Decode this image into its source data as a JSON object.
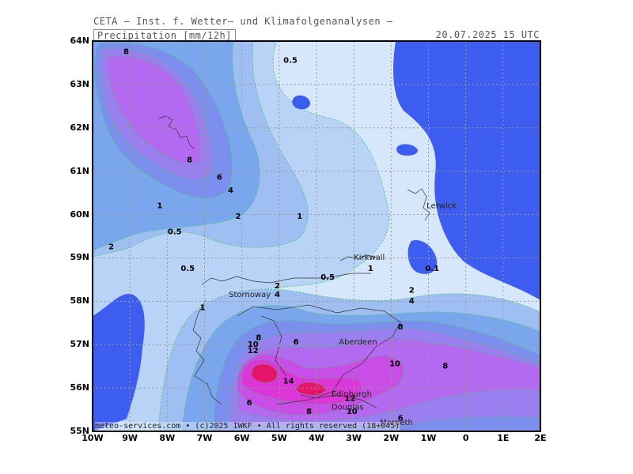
{
  "header": {
    "title": "CETA — Inst. f. Wetter— und Klimafolgenanalysen —",
    "parameter": "Precipitation [mm/12h]",
    "valid_time": "20.07.2025 15 UTC"
  },
  "axes": {
    "lat_labels": [
      "64N",
      "63N",
      "62N",
      "61N",
      "60N",
      "59N",
      "58N",
      "57N",
      "56N",
      "55N"
    ],
    "lon_labels": [
      "10W",
      "9W",
      "8W",
      "7W",
      "6W",
      "5W",
      "4W",
      "3W",
      "2W",
      "1W",
      "0",
      "1E",
      "2E"
    ]
  },
  "contour_labels": [
    {
      "text": "8",
      "lon": -9.1,
      "lat": 63.7
    },
    {
      "text": "0.5",
      "lon": -4.7,
      "lat": 63.5
    },
    {
      "text": "8",
      "lon": -7.4,
      "lat": 61.2
    },
    {
      "text": "6",
      "lon": -6.6,
      "lat": 60.8
    },
    {
      "text": "4",
      "lon": -6.3,
      "lat": 60.5
    },
    {
      "text": "1",
      "lon": -8.2,
      "lat": 60.15
    },
    {
      "text": "2",
      "lon": -6.1,
      "lat": 59.9
    },
    {
      "text": "1",
      "lon": -4.45,
      "lat": 59.9
    },
    {
      "text": "0.5",
      "lon": -7.8,
      "lat": 59.55
    },
    {
      "text": "2",
      "lon": -9.5,
      "lat": 59.2
    },
    {
      "text": "0.5",
      "lon": -7.45,
      "lat": 58.7
    },
    {
      "text": "1",
      "lon": -2.55,
      "lat": 58.7
    },
    {
      "text": "0.1",
      "lon": -0.9,
      "lat": 58.7
    },
    {
      "text": "0.5",
      "lon": -3.7,
      "lat": 58.5
    },
    {
      "text": "2",
      "lon": -5.05,
      "lat": 58.3
    },
    {
      "text": "4",
      "lon": -5.05,
      "lat": 58.1
    },
    {
      "text": "2",
      "lon": -1.45,
      "lat": 58.2
    },
    {
      "text": "4",
      "lon": -1.45,
      "lat": 57.95
    },
    {
      "text": "1",
      "lon": -7.05,
      "lat": 57.8
    },
    {
      "text": "8",
      "lon": -1.75,
      "lat": 57.35
    },
    {
      "text": "8",
      "lon": -5.55,
      "lat": 57.1
    },
    {
      "text": "10",
      "lon": -5.7,
      "lat": 56.95
    },
    {
      "text": "6",
      "lon": -4.55,
      "lat": 57.0
    },
    {
      "text": "12",
      "lon": -5.7,
      "lat": 56.8
    },
    {
      "text": "10",
      "lon": -1.9,
      "lat": 56.5
    },
    {
      "text": "8",
      "lon": -0.55,
      "lat": 56.45
    },
    {
      "text": "14",
      "lon": -4.75,
      "lat": 56.1
    },
    {
      "text": "12",
      "lon": -3.1,
      "lat": 55.7
    },
    {
      "text": "6",
      "lon": -5.8,
      "lat": 55.6
    },
    {
      "text": "8",
      "lon": -4.2,
      "lat": 55.4
    },
    {
      "text": "10",
      "lon": -3.05,
      "lat": 55.4
    },
    {
      "text": "6",
      "lon": -1.75,
      "lat": 55.25
    }
  ],
  "cities": [
    {
      "name": "Lerwick",
      "lon": -1.05,
      "lat": 60.15
    },
    {
      "name": "Kirkwall",
      "lon": -3.0,
      "lat": 58.95
    },
    {
      "name": "Stornoway",
      "lon": -6.35,
      "lat": 58.1
    },
    {
      "name": "Aberdeen",
      "lon": -3.4,
      "lat": 57.0
    },
    {
      "name": "Edinburgh",
      "lon": -3.6,
      "lat": 55.8
    },
    {
      "name": "Douglas",
      "lon": -3.6,
      "lat": 55.5
    },
    {
      "name": "Morpeth",
      "lon": -2.3,
      "lat": 55.15
    }
  ],
  "copyright": "meteo-services.com • (c)2025 IWKF • All rights reserved (18+045)",
  "colors": {
    "land_mask": "#3d5cf0",
    "p_01": "#d6e6fb",
    "p_05": "#b9d3f7",
    "p_1": "#9fbff2",
    "p_2": "#7aa6ee",
    "p_4": "#7c8fee",
    "p_6": "#9a7ff0",
    "p_8": "#b36af0",
    "p_10": "#c94ee8",
    "p_12": "#dc36d8",
    "p_14": "#e6136a"
  }
}
